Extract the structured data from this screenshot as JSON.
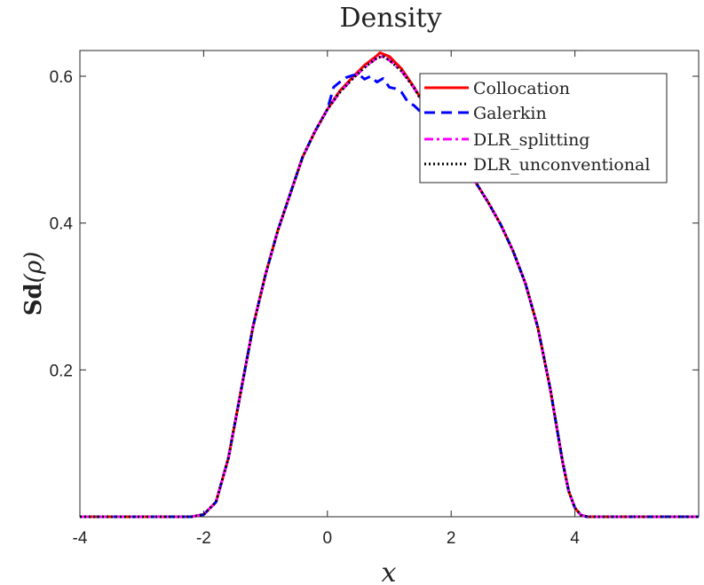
{
  "chart_data": {
    "type": "line",
    "title": "Density",
    "xlabel": "x",
    "ylabel_main": "Sd",
    "ylabel_arg": "(ρ)",
    "xlim": [
      -4,
      6
    ],
    "ylim": [
      0,
      0.635
    ],
    "xticks": [
      -4,
      -2,
      0,
      2,
      4
    ],
    "xtick_labels": [
      "-4",
      "-2",
      "0",
      "2",
      "4"
    ],
    "yticks": [
      0.2,
      0.4,
      0.6
    ],
    "ytick_labels": [
      "0.2",
      "0.4",
      "0.6"
    ],
    "grid": false,
    "legend_position": "top-right",
    "series": [
      {
        "name": "Collocation",
        "color": "#ff0000",
        "style": "solid",
        "points": [
          [
            -4,
            0
          ],
          [
            -2.2,
            0
          ],
          [
            -2,
            0.003
          ],
          [
            -1.8,
            0.02
          ],
          [
            -1.6,
            0.08
          ],
          [
            -1.4,
            0.17
          ],
          [
            -1.2,
            0.26
          ],
          [
            -1,
            0.33
          ],
          [
            -0.8,
            0.39
          ],
          [
            -0.6,
            0.44
          ],
          [
            -0.4,
            0.49
          ],
          [
            -0.2,
            0.525
          ],
          [
            0,
            0.555
          ],
          [
            0.2,
            0.58
          ],
          [
            0.4,
            0.598
          ],
          [
            0.6,
            0.615
          ],
          [
            0.8,
            0.628
          ],
          [
            0.85,
            0.632
          ],
          [
            1,
            0.627
          ],
          [
            1.2,
            0.61
          ],
          [
            1.4,
            0.585
          ],
          [
            1.6,
            0.557
          ],
          [
            1.8,
            0.528
          ],
          [
            2,
            0.505
          ],
          [
            2.2,
            0.48
          ],
          [
            2.4,
            0.455
          ],
          [
            2.6,
            0.428
          ],
          [
            2.8,
            0.398
          ],
          [
            3,
            0.362
          ],
          [
            3.2,
            0.318
          ],
          [
            3.4,
            0.258
          ],
          [
            3.6,
            0.175
          ],
          [
            3.7,
            0.125
          ],
          [
            3.8,
            0.075
          ],
          [
            3.9,
            0.035
          ],
          [
            4,
            0.012
          ],
          [
            4.1,
            0.002
          ],
          [
            4.2,
            0
          ],
          [
            6,
            0
          ]
        ]
      },
      {
        "name": "Galerkin",
        "color": "#0000ff",
        "style": "dashed",
        "points": [
          [
            -4,
            0
          ],
          [
            -2.2,
            0
          ],
          [
            -2,
            0.003
          ],
          [
            -1.8,
            0.02
          ],
          [
            -1.6,
            0.08
          ],
          [
            -1.4,
            0.17
          ],
          [
            -1.2,
            0.26
          ],
          [
            -1,
            0.33
          ],
          [
            -0.8,
            0.39
          ],
          [
            -0.6,
            0.44
          ],
          [
            -0.4,
            0.49
          ],
          [
            -0.2,
            0.525
          ],
          [
            0,
            0.555
          ],
          [
            0.1,
            0.585
          ],
          [
            0.2,
            0.592
          ],
          [
            0.3,
            0.598
          ],
          [
            0.4,
            0.601
          ],
          [
            0.5,
            0.603
          ],
          [
            0.6,
            0.596
          ],
          [
            0.7,
            0.6
          ],
          [
            0.8,
            0.592
          ],
          [
            0.9,
            0.597
          ],
          [
            1,
            0.585
          ],
          [
            1.1,
            0.583
          ],
          [
            1.2,
            0.578
          ],
          [
            1.3,
            0.565
          ],
          [
            1.4,
            0.56
          ],
          [
            1.5,
            0.552
          ],
          [
            1.6,
            0.547
          ],
          [
            1.7,
            0.548
          ],
          [
            1.8,
            0.542
          ],
          [
            2,
            0.51
          ],
          [
            2.2,
            0.48
          ],
          [
            2.4,
            0.455
          ],
          [
            2.6,
            0.428
          ],
          [
            2.8,
            0.398
          ],
          [
            3,
            0.362
          ],
          [
            3.2,
            0.318
          ],
          [
            3.4,
            0.258
          ],
          [
            3.6,
            0.175
          ],
          [
            3.7,
            0.125
          ],
          [
            3.8,
            0.075
          ],
          [
            3.9,
            0.035
          ],
          [
            4,
            0.012
          ],
          [
            4.1,
            0.002
          ],
          [
            4.2,
            0
          ],
          [
            6,
            0
          ]
        ]
      },
      {
        "name": "DLR_splitting",
        "color": "#ff00ff",
        "style": "dashdot",
        "points": [
          [
            -4,
            0
          ],
          [
            -2.2,
            0
          ],
          [
            -2,
            0.003
          ],
          [
            -1.8,
            0.02
          ],
          [
            -1.6,
            0.08
          ],
          [
            -1.4,
            0.17
          ],
          [
            -1.2,
            0.26
          ],
          [
            -1,
            0.33
          ],
          [
            -0.8,
            0.39
          ],
          [
            -0.6,
            0.44
          ],
          [
            -0.4,
            0.49
          ],
          [
            -0.2,
            0.525
          ],
          [
            0,
            0.555
          ],
          [
            0.2,
            0.578
          ],
          [
            0.4,
            0.596
          ],
          [
            0.6,
            0.612
          ],
          [
            0.8,
            0.625
          ],
          [
            0.9,
            0.627
          ],
          [
            1,
            0.622
          ],
          [
            1.2,
            0.607
          ],
          [
            1.4,
            0.584
          ],
          [
            1.6,
            0.556
          ],
          [
            1.8,
            0.527
          ],
          [
            2,
            0.504
          ],
          [
            2.2,
            0.48
          ],
          [
            2.4,
            0.455
          ],
          [
            2.6,
            0.428
          ],
          [
            2.8,
            0.398
          ],
          [
            3,
            0.362
          ],
          [
            3.2,
            0.318
          ],
          [
            3.4,
            0.258
          ],
          [
            3.6,
            0.175
          ],
          [
            3.7,
            0.125
          ],
          [
            3.8,
            0.075
          ],
          [
            3.9,
            0.035
          ],
          [
            4,
            0.012
          ],
          [
            4.1,
            0.002
          ],
          [
            4.2,
            0
          ],
          [
            6,
            0
          ]
        ]
      },
      {
        "name": "DLR_unconventional",
        "color": "#000000",
        "style": "dotted",
        "points": [
          [
            -4,
            0
          ],
          [
            -2.2,
            0
          ],
          [
            -2,
            0.003
          ],
          [
            -1.8,
            0.02
          ],
          [
            -1.6,
            0.08
          ],
          [
            -1.4,
            0.17
          ],
          [
            -1.2,
            0.26
          ],
          [
            -1,
            0.33
          ],
          [
            -0.8,
            0.39
          ],
          [
            -0.6,
            0.44
          ],
          [
            -0.4,
            0.49
          ],
          [
            -0.2,
            0.525
          ],
          [
            0,
            0.555
          ],
          [
            0.2,
            0.578
          ],
          [
            0.4,
            0.596
          ],
          [
            0.6,
            0.612
          ],
          [
            0.8,
            0.625
          ],
          [
            0.9,
            0.627
          ],
          [
            1,
            0.622
          ],
          [
            1.2,
            0.607
          ],
          [
            1.4,
            0.584
          ],
          [
            1.6,
            0.556
          ],
          [
            1.8,
            0.527
          ],
          [
            2,
            0.504
          ],
          [
            2.2,
            0.48
          ],
          [
            2.4,
            0.455
          ],
          [
            2.6,
            0.428
          ],
          [
            2.8,
            0.398
          ],
          [
            3,
            0.362
          ],
          [
            3.2,
            0.318
          ],
          [
            3.4,
            0.258
          ],
          [
            3.6,
            0.175
          ],
          [
            3.7,
            0.125
          ],
          [
            3.8,
            0.075
          ],
          [
            3.9,
            0.035
          ],
          [
            4,
            0.012
          ],
          [
            4.1,
            0.002
          ],
          [
            4.2,
            0
          ],
          [
            6,
            0
          ]
        ]
      }
    ]
  }
}
